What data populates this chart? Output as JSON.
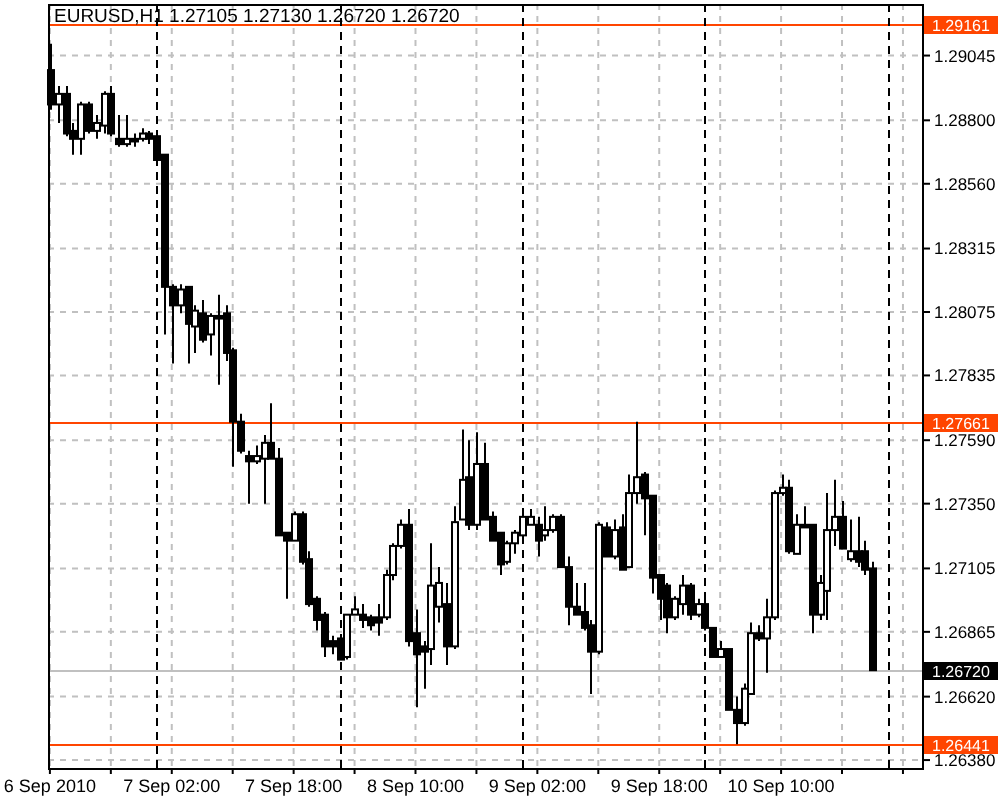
{
  "chart_data": {
    "type": "candlestick",
    "title": "EURUSD,H1 1.27105 1.27130 1.26720 1.26720",
    "x": [
      "2010-09-06T10:00",
      "2010-09-06T11:00",
      "2010-09-06T12:00",
      "2010-09-06T13:00",
      "2010-09-06T14:00",
      "2010-09-06T15:00",
      "2010-09-06T16:00",
      "2010-09-06T17:00",
      "2010-09-06T18:00",
      "2010-09-06T19:00",
      "2010-09-06T20:00",
      "2010-09-06T21:00",
      "2010-09-06T22:00",
      "2010-09-06T23:00",
      "2010-09-07T00:00",
      "2010-09-07T01:00",
      "2010-09-07T02:00",
      "2010-09-07T03:00",
      "2010-09-07T04:00",
      "2010-09-07T05:00",
      "2010-09-07T06:00",
      "2010-09-07T07:00",
      "2010-09-07T08:00",
      "2010-09-07T09:00",
      "2010-09-07T10:00",
      "2010-09-07T11:00",
      "2010-09-07T12:00",
      "2010-09-07T13:00",
      "2010-09-07T14:00",
      "2010-09-07T15:00",
      "2010-09-07T16:00",
      "2010-09-07T17:00",
      "2010-09-07T18:00",
      "2010-09-07T19:00",
      "2010-09-07T20:00",
      "2010-09-07T21:00",
      "2010-09-07T22:00",
      "2010-09-07T23:00",
      "2010-09-08T00:00",
      "2010-09-08T01:00",
      "2010-09-08T02:00",
      "2010-09-08T03:00",
      "2010-09-08T04:00",
      "2010-09-08T05:00",
      "2010-09-08T06:00",
      "2010-09-08T07:00",
      "2010-09-08T08:00",
      "2010-09-08T09:00",
      "2010-09-08T10:00",
      "2010-09-08T11:00",
      "2010-09-08T12:00",
      "2010-09-08T13:00",
      "2010-09-08T14:00",
      "2010-09-08T15:00",
      "2010-09-08T16:00",
      "2010-09-08T17:00",
      "2010-09-08T18:00",
      "2010-09-08T19:00",
      "2010-09-08T20:00",
      "2010-09-08T21:00",
      "2010-09-08T22:00",
      "2010-09-08T23:00",
      "2010-09-09T00:00",
      "2010-09-09T01:00",
      "2010-09-09T02:00",
      "2010-09-09T03:00",
      "2010-09-09T04:00",
      "2010-09-09T05:00",
      "2010-09-09T06:00",
      "2010-09-09T07:00",
      "2010-09-09T08:00",
      "2010-09-09T09:00",
      "2010-09-09T10:00",
      "2010-09-09T11:00",
      "2010-09-09T12:00",
      "2010-09-09T13:00",
      "2010-09-09T14:00",
      "2010-09-09T15:00",
      "2010-09-09T16:00",
      "2010-09-09T17:00",
      "2010-09-09T18:00",
      "2010-09-09T19:00",
      "2010-09-09T20:00",
      "2010-09-09T21:00",
      "2010-09-09T22:00",
      "2010-09-09T23:00",
      "2010-09-10T00:00",
      "2010-09-10T01:00",
      "2010-09-10T02:00",
      "2010-09-10T03:00",
      "2010-09-10T04:00",
      "2010-09-10T05:00",
      "2010-09-10T06:00",
      "2010-09-10T07:00",
      "2010-09-10T08:00",
      "2010-09-10T09:00",
      "2010-09-10T10:00",
      "2010-09-10T11:00",
      "2010-09-10T12:00",
      "2010-09-10T13:00",
      "2010-09-10T14:00",
      "2010-09-10T15:00",
      "2010-09-10T16:00",
      "2010-09-10T17:00",
      "2010-09-10T18:00",
      "2010-09-10T19:00",
      "2010-09-10T20:00",
      "2010-09-10T21:00",
      "2010-09-10T22:00"
    ],
    "ohlc": [
      [
        1.2899,
        1.2909,
        1.2884,
        1.2886
      ],
      [
        1.2886,
        1.2893,
        1.2879,
        1.289
      ],
      [
        1.289,
        1.2893,
        1.2874,
        1.2875
      ],
      [
        1.2876,
        1.2879,
        1.2867,
        1.2873
      ],
      [
        1.2873,
        1.2887,
        1.2867,
        1.2886
      ],
      [
        1.2886,
        1.2887,
        1.2875,
        1.2876
      ],
      [
        1.2876,
        1.2882,
        1.2873,
        1.2879
      ],
      [
        1.2878,
        1.2891,
        1.2875,
        1.289
      ],
      [
        1.289,
        1.2893,
        1.2874,
        1.2875
      ],
      [
        1.2873,
        1.2882,
        1.287,
        1.2871
      ],
      [
        1.2871,
        1.2882,
        1.287,
        1.2873
      ],
      [
        1.2873,
        1.2875,
        1.287,
        1.2872
      ],
      [
        1.2873,
        1.2877,
        1.2872,
        1.2875
      ],
      [
        1.2875,
        1.2876,
        1.2871,
        1.2873
      ],
      [
        1.2874,
        1.2875,
        1.2864,
        1.2865
      ],
      [
        1.2867,
        1.2867,
        1.2799,
        1.2817
      ],
      [
        1.2817,
        1.2818,
        1.2788,
        1.281
      ],
      [
        1.281,
        1.2818,
        1.2807,
        1.2816
      ],
      [
        1.2817,
        1.2817,
        1.2788,
        1.2803
      ],
      [
        1.2802,
        1.281,
        1.2792,
        1.2808
      ],
      [
        1.2807,
        1.2812,
        1.2796,
        1.2797
      ],
      [
        1.2799,
        1.2807,
        1.2791,
        1.2806
      ],
      [
        1.2806,
        1.2814,
        1.278,
        1.2805
      ],
      [
        1.2807,
        1.281,
        1.2789,
        1.2792
      ],
      [
        1.2793,
        1.2794,
        1.2749,
        1.2766
      ],
      [
        1.2766,
        1.2769,
        1.2754,
        1.2755
      ],
      [
        1.2753,
        1.2755,
        1.2735,
        1.2751
      ],
      [
        1.2751,
        1.2757,
        1.275,
        1.2753
      ],
      [
        1.2752,
        1.2761,
        1.2735,
        1.2758
      ],
      [
        1.2758,
        1.2773,
        1.2752,
        1.2752
      ],
      [
        1.2752,
        1.2756,
        1.2723,
        1.2723
      ],
      [
        1.2724,
        1.2724,
        1.2699,
        1.2721
      ],
      [
        1.2721,
        1.2732,
        1.2721,
        1.2731
      ],
      [
        1.2731,
        1.2732,
        1.2712,
        1.2713
      ],
      [
        1.2714,
        1.2717,
        1.2696,
        1.2697
      ],
      [
        1.2699,
        1.27,
        1.2687,
        1.2691
      ],
      [
        1.2693,
        1.2694,
        1.2677,
        1.2681
      ],
      [
        1.2683,
        1.2685,
        1.2678,
        1.2681
      ],
      [
        1.2684,
        1.2685,
        1.2676,
        1.2676
      ],
      [
        1.2677,
        1.2693,
        1.2676,
        1.2693
      ],
      [
        1.2693,
        1.27,
        1.2693,
        1.2695
      ],
      [
        1.2693,
        1.2697,
        1.2688,
        1.2691
      ],
      [
        1.2692,
        1.2693,
        1.2687,
        1.2689
      ],
      [
        1.2692,
        1.2697,
        1.2685,
        1.269
      ],
      [
        1.2692,
        1.271,
        1.2691,
        1.2708
      ],
      [
        1.2708,
        1.272,
        1.2706,
        1.2719
      ],
      [
        1.2719,
        1.2729,
        1.2718,
        1.2727
      ],
      [
        1.2727,
        1.2733,
        1.2681,
        1.2683
      ],
      [
        1.2686,
        1.2695,
        1.2658,
        1.2678
      ],
      [
        1.2681,
        1.2683,
        1.2665,
        1.2679
      ],
      [
        1.268,
        1.272,
        1.2674,
        1.2704
      ],
      [
        1.2696,
        1.2711,
        1.269,
        1.2705
      ],
      [
        1.2697,
        1.2705,
        1.2674,
        1.2681
      ],
      [
        1.2681,
        1.2734,
        1.268,
        1.2728
      ],
      [
        1.2729,
        1.2763,
        1.2729,
        1.2744
      ],
      [
        1.2745,
        1.2759,
        1.2725,
        1.2727
      ],
      [
        1.2727,
        1.2762,
        1.2725,
        1.275
      ],
      [
        1.275,
        1.2758,
        1.2729,
        1.2729
      ],
      [
        1.273,
        1.2732,
        1.2721,
        1.2721
      ],
      [
        1.2724,
        1.2724,
        1.2708,
        1.2712
      ],
      [
        1.2713,
        1.2721,
        1.2712,
        1.272
      ],
      [
        1.272,
        1.2725,
        1.2716,
        1.2724
      ],
      [
        1.2723,
        1.2733,
        1.2721,
        1.273
      ],
      [
        1.2727,
        1.2733,
        1.2727,
        1.273
      ],
      [
        1.2727,
        1.273,
        1.2715,
        1.2721
      ],
      [
        1.2723,
        1.2734,
        1.2721,
        1.2725
      ],
      [
        1.2725,
        1.2731,
        1.2724,
        1.273
      ],
      [
        1.273,
        1.2731,
        1.2711,
        1.2711
      ],
      [
        1.2711,
        1.2715,
        1.2689,
        1.2696
      ],
      [
        1.2696,
        1.2705,
        1.2693,
        1.2693
      ],
      [
        1.2694,
        1.2705,
        1.2687,
        1.2688
      ],
      [
        1.2689,
        1.2691,
        1.2663,
        1.2679
      ],
      [
        1.2679,
        1.2728,
        1.2678,
        1.2727
      ],
      [
        1.2726,
        1.2728,
        1.2715,
        1.2715
      ],
      [
        1.2715,
        1.2729,
        1.2714,
        1.2725
      ],
      [
        1.2726,
        1.2731,
        1.271,
        1.271
      ],
      [
        1.2711,
        1.2746,
        1.2711,
        1.2739
      ],
      [
        1.2739,
        1.2766,
        1.2735,
        1.2745
      ],
      [
        1.2746,
        1.2747,
        1.2723,
        1.2737
      ],
      [
        1.2738,
        1.2738,
        1.2701,
        1.2707
      ],
      [
        1.2708,
        1.2708,
        1.2691,
        1.2699
      ],
      [
        1.2704,
        1.2705,
        1.2686,
        1.2692
      ],
      [
        1.2692,
        1.27,
        1.2691,
        1.2699
      ],
      [
        1.2697,
        1.2708,
        1.2693,
        1.2704
      ],
      [
        1.2704,
        1.2705,
        1.2691,
        1.2693
      ],
      [
        1.2693,
        1.2699,
        1.2692,
        1.2697
      ],
      [
        1.2697,
        1.2701,
        1.2687,
        1.2688
      ],
      [
        1.2688,
        1.2688,
        1.2677,
        1.2677
      ],
      [
        1.2677,
        1.2683,
        1.2677,
        1.268
      ],
      [
        1.268,
        1.268,
        1.2657,
        1.2657
      ],
      [
        1.2657,
        1.2662,
        1.2644,
        1.2652
      ],
      [
        1.2652,
        1.2667,
        1.2651,
        1.2665
      ],
      [
        1.2663,
        1.269,
        1.2663,
        1.2686
      ],
      [
        1.2686,
        1.2689,
        1.2683,
        1.2684
      ],
      [
        1.2684,
        1.2699,
        1.2671,
        1.2692
      ],
      [
        1.2692,
        1.274,
        1.2691,
        1.2739
      ],
      [
        1.2739,
        1.2746,
        1.2738,
        1.2741
      ],
      [
        1.2741,
        1.2744,
        1.2716,
        1.2717
      ],
      [
        1.2716,
        1.2731,
        1.2716,
        1.2727
      ],
      [
        1.2727,
        1.2734,
        1.2726,
        1.2726
      ],
      [
        1.2727,
        1.2727,
        1.2686,
        1.2693
      ],
      [
        1.2693,
        1.2708,
        1.2691,
        1.2705
      ],
      [
        1.2702,
        1.2739,
        1.2691,
        1.2725
      ],
      [
        1.2725,
        1.2744,
        1.2719,
        1.273
      ],
      [
        1.273,
        1.2736,
        1.2718,
        1.2718
      ],
      [
        1.2714,
        1.2729,
        1.2713,
        1.2717
      ],
      [
        1.2717,
        1.273,
        1.2711,
        1.2713
      ],
      [
        1.2717,
        1.2721,
        1.2708,
        1.271
      ],
      [
        1.27105,
        1.2713,
        1.2672,
        1.2672
      ]
    ],
    "xlim": [
      "2010-09-06T09:45",
      "2010-09-11T04:30"
    ],
    "xticks": [
      {
        "value": "2010-09-06T10:00",
        "label": "6 Sep 2010"
      },
      {
        "value": "2010-09-06T18:00",
        "label": null
      },
      {
        "value": "2010-09-07T02:00",
        "label": "7 Sep 02:00"
      },
      {
        "value": "2010-09-07T10:00",
        "label": null
      },
      {
        "value": "2010-09-07T18:00",
        "label": "7 Sep 18:00"
      },
      {
        "value": "2010-09-08T02:00",
        "label": null
      },
      {
        "value": "2010-09-08T10:00",
        "label": "8 Sep 10:00"
      },
      {
        "value": "2010-09-08T18:00",
        "label": null
      },
      {
        "value": "2010-09-09T02:00",
        "label": "9 Sep 02:00"
      },
      {
        "value": "2010-09-09T10:00",
        "label": null
      },
      {
        "value": "2010-09-09T18:00",
        "label": "9 Sep 18:00"
      },
      {
        "value": "2010-09-10T02:00",
        "label": null
      },
      {
        "value": "2010-09-10T10:00",
        "label": "10 Sep 10:00"
      },
      {
        "value": "2010-09-10T18:00",
        "label": null
      },
      {
        "value": "2010-09-11T02:00",
        "label": null
      }
    ],
    "ylim": [
      1.2635,
      1.2924
    ],
    "yticks": [
      {
        "value": 1.2638,
        "label": "1.26380"
      },
      {
        "value": 1.2662,
        "label": "1.26620"
      },
      {
        "value": 1.26865,
        "label": "1.26865"
      },
      {
        "value": 1.27105,
        "label": "1.27105"
      },
      {
        "value": 1.2735,
        "label": "1.27350"
      },
      {
        "value": 1.2759,
        "label": "1.27590"
      },
      {
        "value": 1.27835,
        "label": "1.27835"
      },
      {
        "value": 1.28075,
        "label": "1.28075"
      },
      {
        "value": 1.28315,
        "label": "1.28315"
      },
      {
        "value": 1.2856,
        "label": "1.28560"
      },
      {
        "value": 1.288,
        "label": "1.28800"
      },
      {
        "value": 1.29045,
        "label": "1.29045"
      }
    ],
    "grid": true,
    "ref_lines": [
      {
        "axis": "y",
        "value": 1.29161,
        "label": "1.29161",
        "color": "#ff4500"
      },
      {
        "axis": "y",
        "value": 1.27661,
        "label": "1.27661",
        "color": "#ff4500"
      },
      {
        "axis": "y",
        "value": 1.26441,
        "label": "1.26441",
        "color": "#ff4500"
      },
      {
        "axis": "y",
        "value": 1.2672,
        "label": "1.26720",
        "color": "#c0c0c0"
      },
      {
        "axis": "x",
        "value": "2010-09-07T00:00",
        "color": "#000000",
        "line_style": "dashed"
      },
      {
        "axis": "x",
        "value": "2010-09-08T00:00",
        "color": "#000000",
        "line_style": "dashed"
      },
      {
        "axis": "x",
        "value": "2010-09-09T00:00",
        "color": "#000000",
        "line_style": "dashed"
      },
      {
        "axis": "x",
        "value": "2010-09-10T00:00",
        "color": "#000000",
        "line_style": "dashed"
      },
      {
        "axis": "x",
        "value": "2010-09-11T00:00",
        "color": "#000000",
        "line_style": "dashed"
      }
    ]
  }
}
